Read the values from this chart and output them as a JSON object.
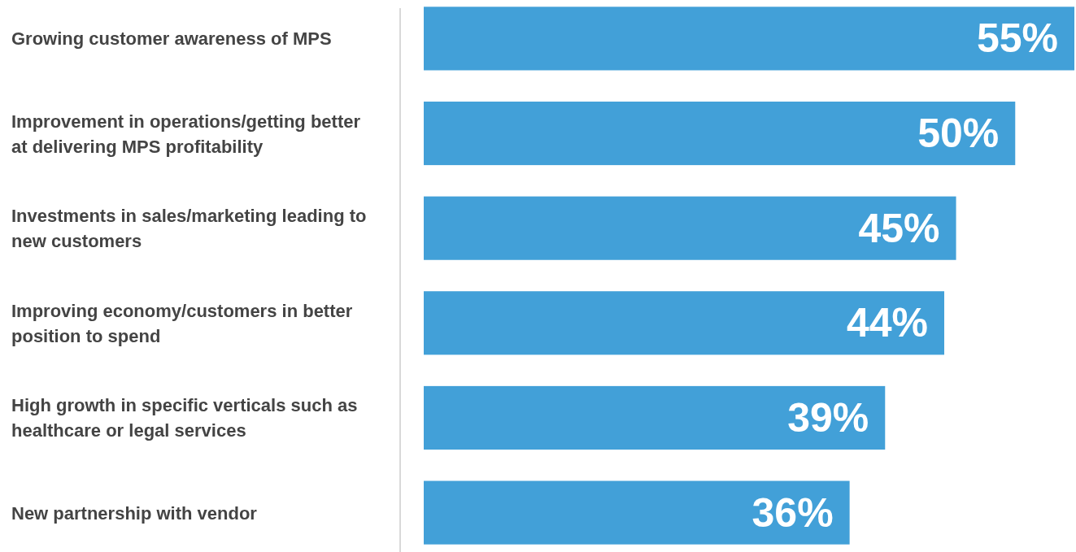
{
  "chart_data": {
    "type": "bar",
    "orientation": "horizontal",
    "categories": [
      "Growing customer awareness of MPS",
      "Improvement in operations/getting better at delivering MPS profitability",
      "Investments in sales/marketing leading to new customers",
      "Improving economy/customers in better position to spend",
      "High growth in specific verticals such as healthcare or legal services",
      "New partnership with vendor"
    ],
    "values": [
      55,
      50,
      45,
      44,
      39,
      36
    ],
    "value_labels": [
      "55%",
      "50%",
      "45%",
      "44%",
      "39%",
      "36%"
    ],
    "color": "#42a0d8"
  }
}
